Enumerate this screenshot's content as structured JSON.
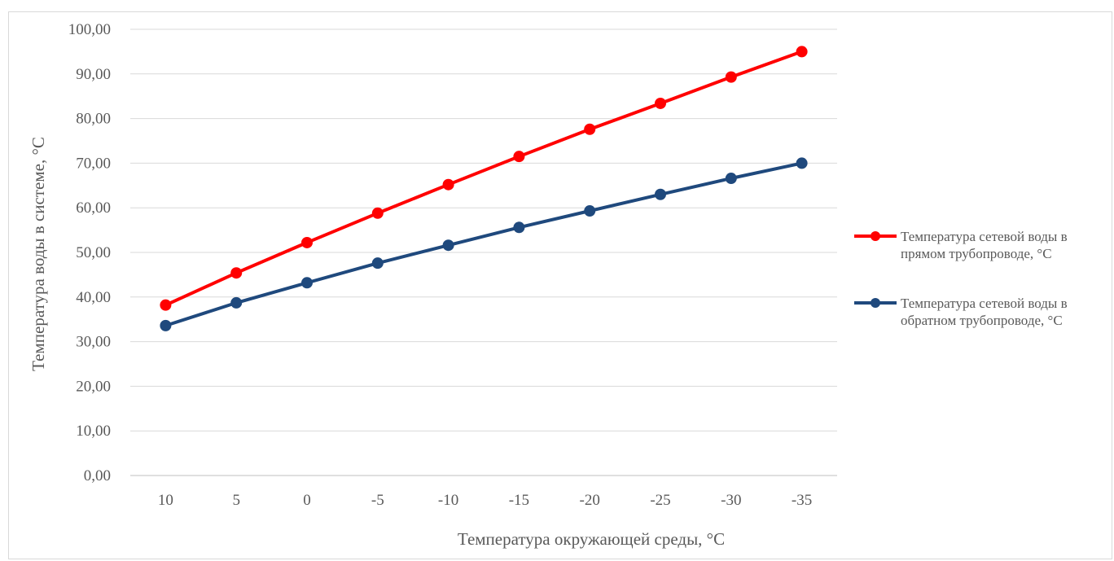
{
  "chart_data": {
    "type": "line",
    "xlabel": "Температура  окружающей среды, °С",
    "ylabel": "Температура  воды в системе,  °С",
    "categories": [
      "10",
      "5",
      "0",
      "-5",
      "-10",
      "-15",
      "-20",
      "-25",
      "-30",
      "-35"
    ],
    "ylim": [
      0,
      100
    ],
    "ytick_step": 10,
    "ytick_labels": [
      "0,00",
      "10,00",
      "20,00",
      "30,00",
      "40,00",
      "50,00",
      "60,00",
      "70,00",
      "80,00",
      "90,00",
      "100,00"
    ],
    "grid": true,
    "legend_position": "right",
    "series": [
      {
        "name_lines": [
          "Температура  сетевой воды в",
          "прямом трубопроводе, °С"
        ],
        "color": "#ff0000",
        "values": [
          38.2,
          45.4,
          52.2,
          58.8,
          65.2,
          71.5,
          77.6,
          83.4,
          89.3,
          95.0
        ]
      },
      {
        "name_lines": [
          "Температура  сетевой воды в",
          "обратном трубопроводе, °С"
        ],
        "color": "#1f497d",
        "values": [
          33.6,
          38.7,
          43.2,
          47.6,
          51.6,
          55.6,
          59.3,
          63.0,
          66.6,
          70.0
        ]
      }
    ]
  }
}
